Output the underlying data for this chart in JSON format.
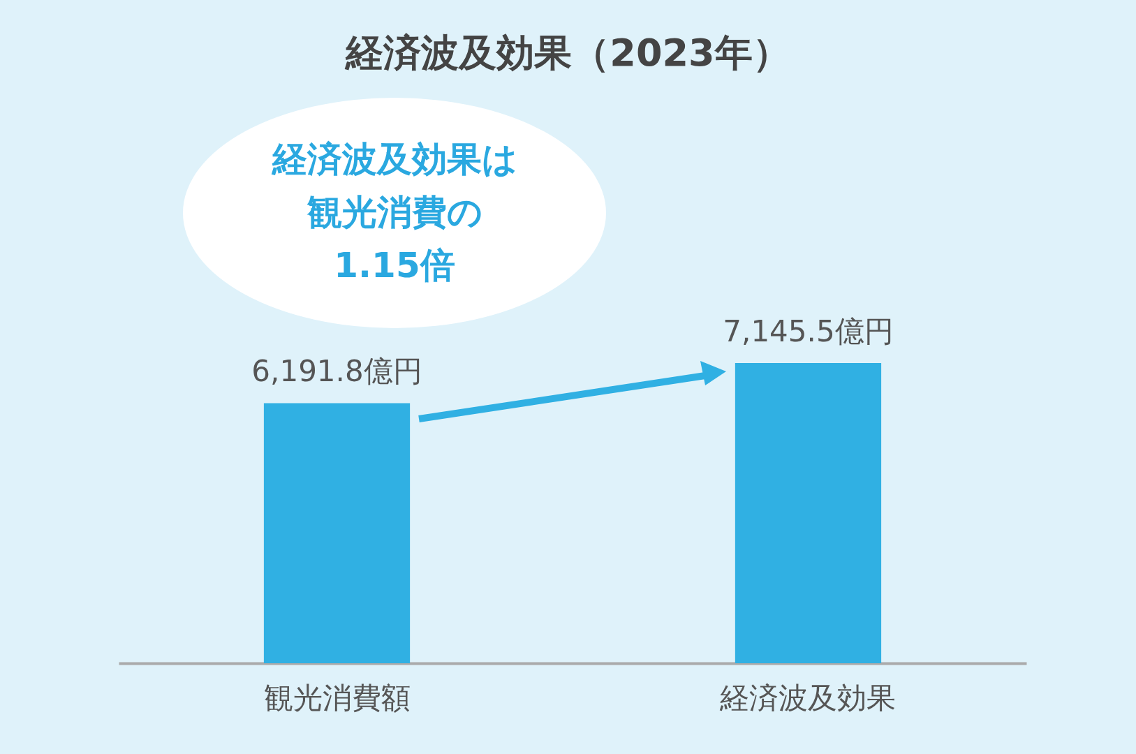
{
  "chart_data": {
    "type": "bar",
    "title": "経済波及効果（2023年）",
    "categories": [
      "観光消費額",
      "経済波及効果"
    ],
    "values": [
      6191.8,
      7145.5
    ],
    "value_labels": [
      "6,191.8億円",
      "7,145.5億円"
    ],
    "color": "#30b0e3",
    "annotations": [
      "経済波及効果は",
      "観光消費の",
      "1.15倍"
    ]
  }
}
